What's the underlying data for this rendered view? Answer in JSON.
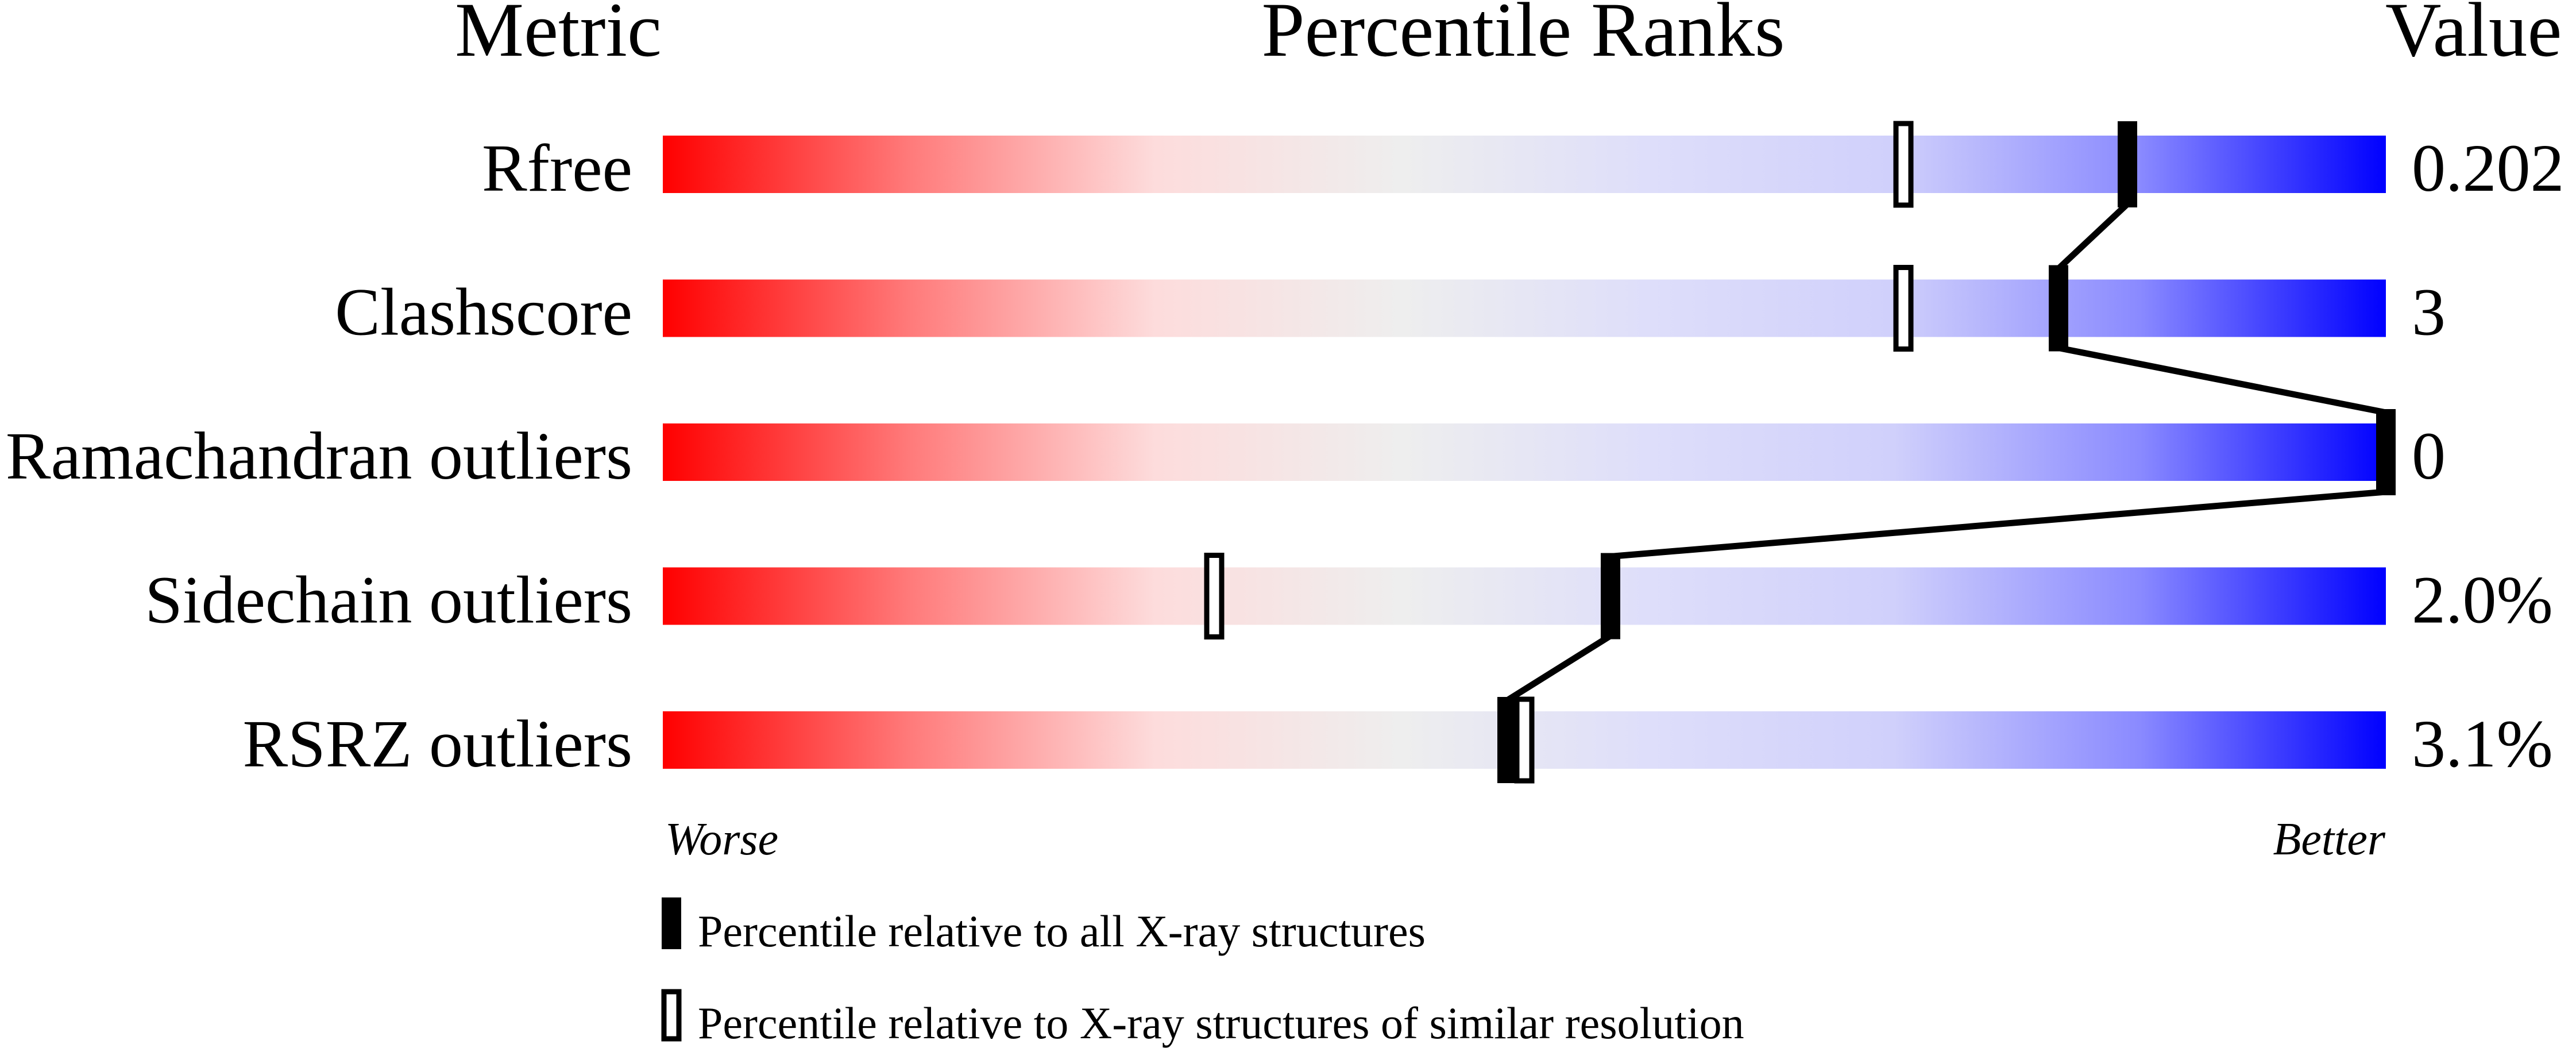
{
  "chart_data": {
    "type": "bar",
    "headers": {
      "metric": "Metric",
      "ranks": "Percentile Ranks",
      "value": "Value"
    },
    "xlim": [
      0,
      100
    ],
    "scale_ends": {
      "left": "Worse",
      "right": "Better"
    },
    "gradient_colors": [
      "#ff0000",
      "#ff7a7a",
      "#fddcdc",
      "#eeeeee",
      "#dedefa",
      "#d0d0fb",
      "#8a8aff",
      "#0000ff"
    ],
    "rows": [
      {
        "metric": "Rfree",
        "value": "0.202",
        "percentile_all": 85,
        "percentile_similar": 72
      },
      {
        "metric": "Clashscore",
        "value": "3",
        "percentile_all": 81,
        "percentile_similar": 72
      },
      {
        "metric": "Ramachandran outliers",
        "value": "0",
        "percentile_all": 100,
        "percentile_similar": null
      },
      {
        "metric": "Sidechain outliers",
        "value": "2.0%",
        "percentile_all": 55,
        "percentile_similar": 32
      },
      {
        "metric": "RSRZ outliers",
        "value": "3.1%",
        "percentile_all": 49,
        "percentile_similar": 50
      }
    ],
    "legend": [
      {
        "marker": "filled",
        "label": "Percentile relative to all X-ray structures"
      },
      {
        "marker": "hollow",
        "label": "Percentile relative to X-ray structures of similar resolution"
      }
    ]
  }
}
